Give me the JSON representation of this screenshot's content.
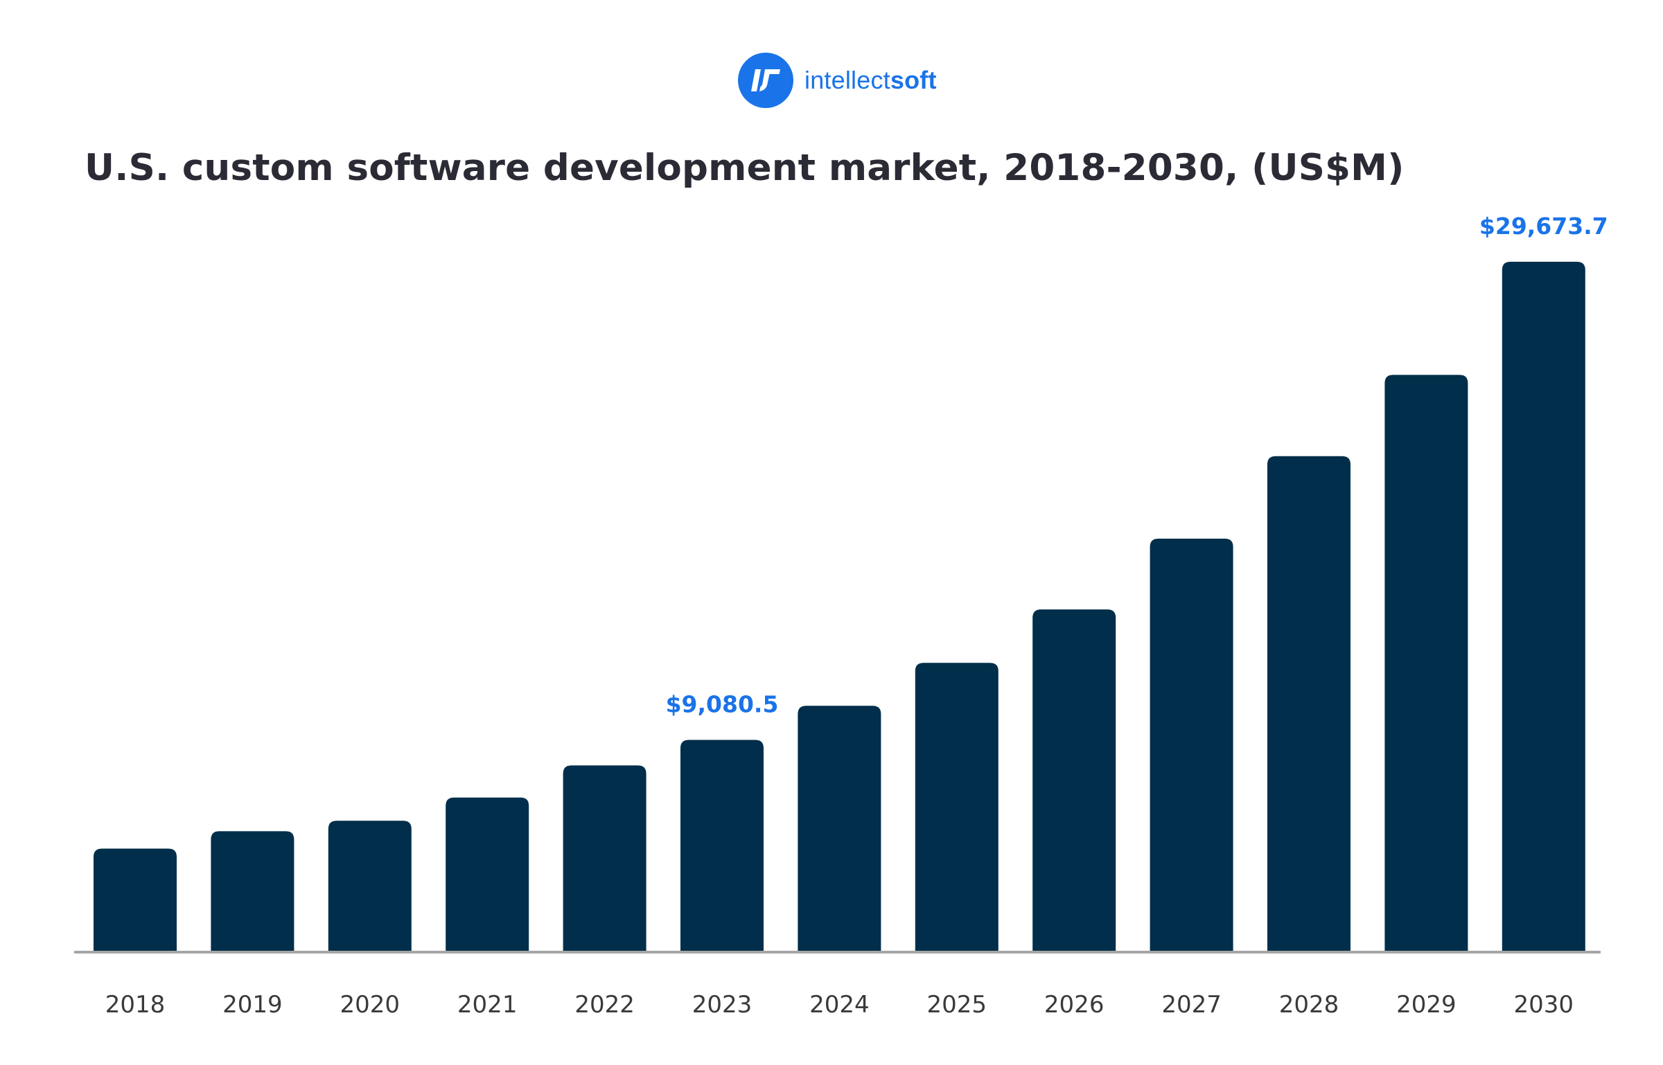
{
  "logo": {
    "text_light": "intellect",
    "text_bold": "soft",
    "mark_icon": "intellectsoft-logo-icon",
    "brand_color": "#1a73e8"
  },
  "colors": {
    "bar": "#012e4a",
    "accent": "#1a73e8",
    "axis": "#a6a6a6",
    "title": "#2b2b36"
  },
  "chart_data": {
    "type": "bar",
    "title": "U.S. custom software development market, 2018-2030, (US$M)",
    "xlabel": "",
    "ylabel": "",
    "grid": false,
    "legend": "none",
    "ylim": [
      0,
      30000
    ],
    "categories": [
      "2018",
      "2019",
      "2020",
      "2021",
      "2022",
      "2023",
      "2024",
      "2025",
      "2026",
      "2027",
      "2028",
      "2029",
      "2030"
    ],
    "values": [
      4400,
      5150,
      5600,
      6600,
      7980,
      9080.5,
      10550,
      12400,
      14700,
      17750,
      21300,
      24800,
      29673.7
    ],
    "data_labels": [
      {
        "category": "2023",
        "text": "$9,080.5"
      },
      {
        "category": "2030",
        "text": "$29,673.7"
      }
    ]
  }
}
